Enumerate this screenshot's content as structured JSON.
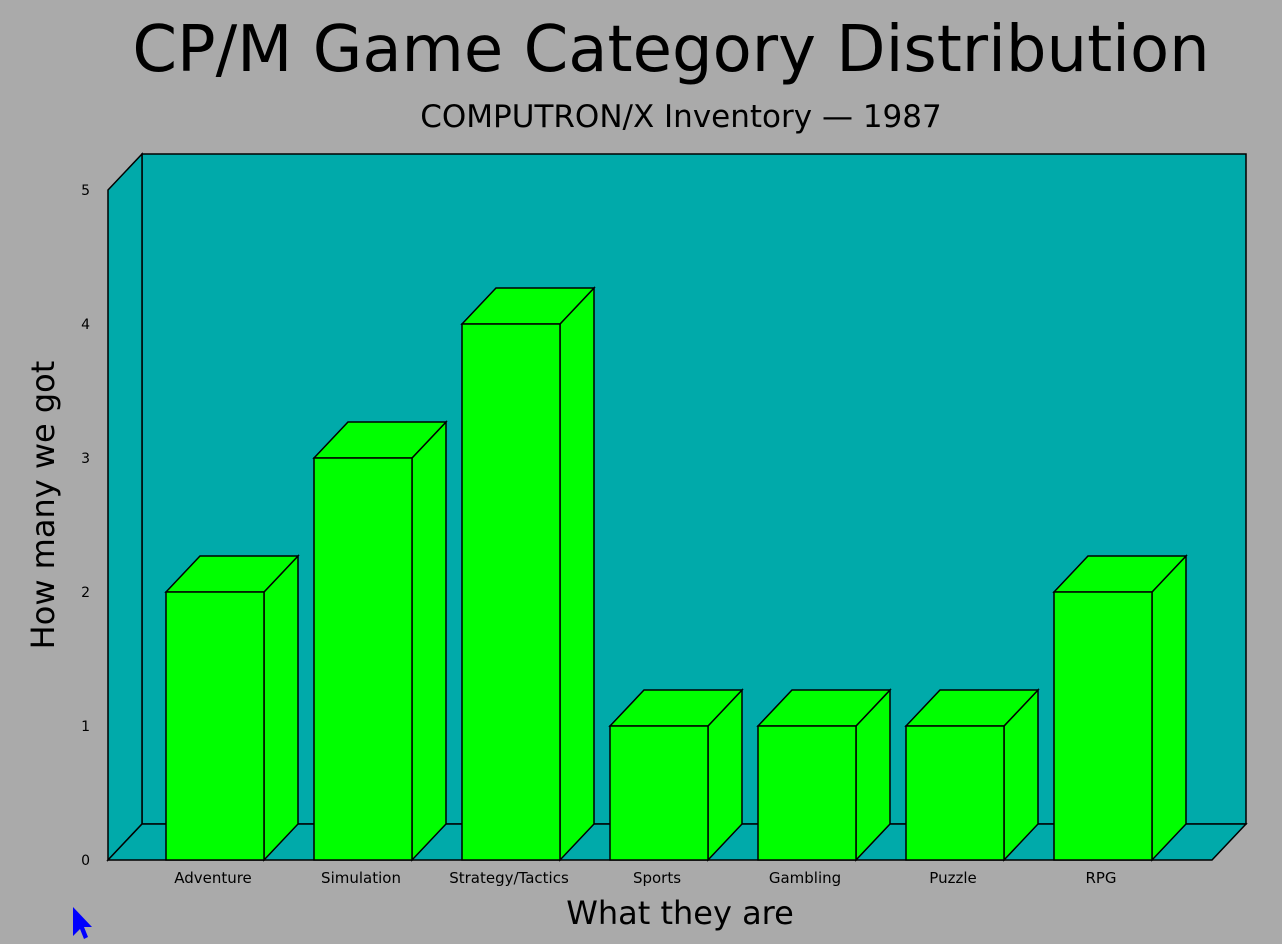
{
  "chart_data": {
    "type": "bar",
    "title": "CP/M Game Category Distribution",
    "subtitle": "COMPUTRON/X Inventory — 1987",
    "xlabel": "What they are",
    "ylabel": "How many we got",
    "categories": [
      "Adventure",
      "Simulation",
      "Strategy/Tactics",
      "Sports",
      "Gambling",
      "Puzzle",
      "RPG"
    ],
    "values": [
      2,
      3,
      4,
      1,
      1,
      1,
      2
    ],
    "ylim": [
      0,
      5
    ],
    "yticks": [
      "0",
      "1",
      "2",
      "3",
      "4",
      "5"
    ],
    "grid": false,
    "legend": "none",
    "style": "3d",
    "colors": {
      "background": "#aaaaaa",
      "plot_wall": "#00aaaa",
      "bar": "#00ff00",
      "outline": "#000000",
      "cursor": "#0000ff"
    }
  }
}
